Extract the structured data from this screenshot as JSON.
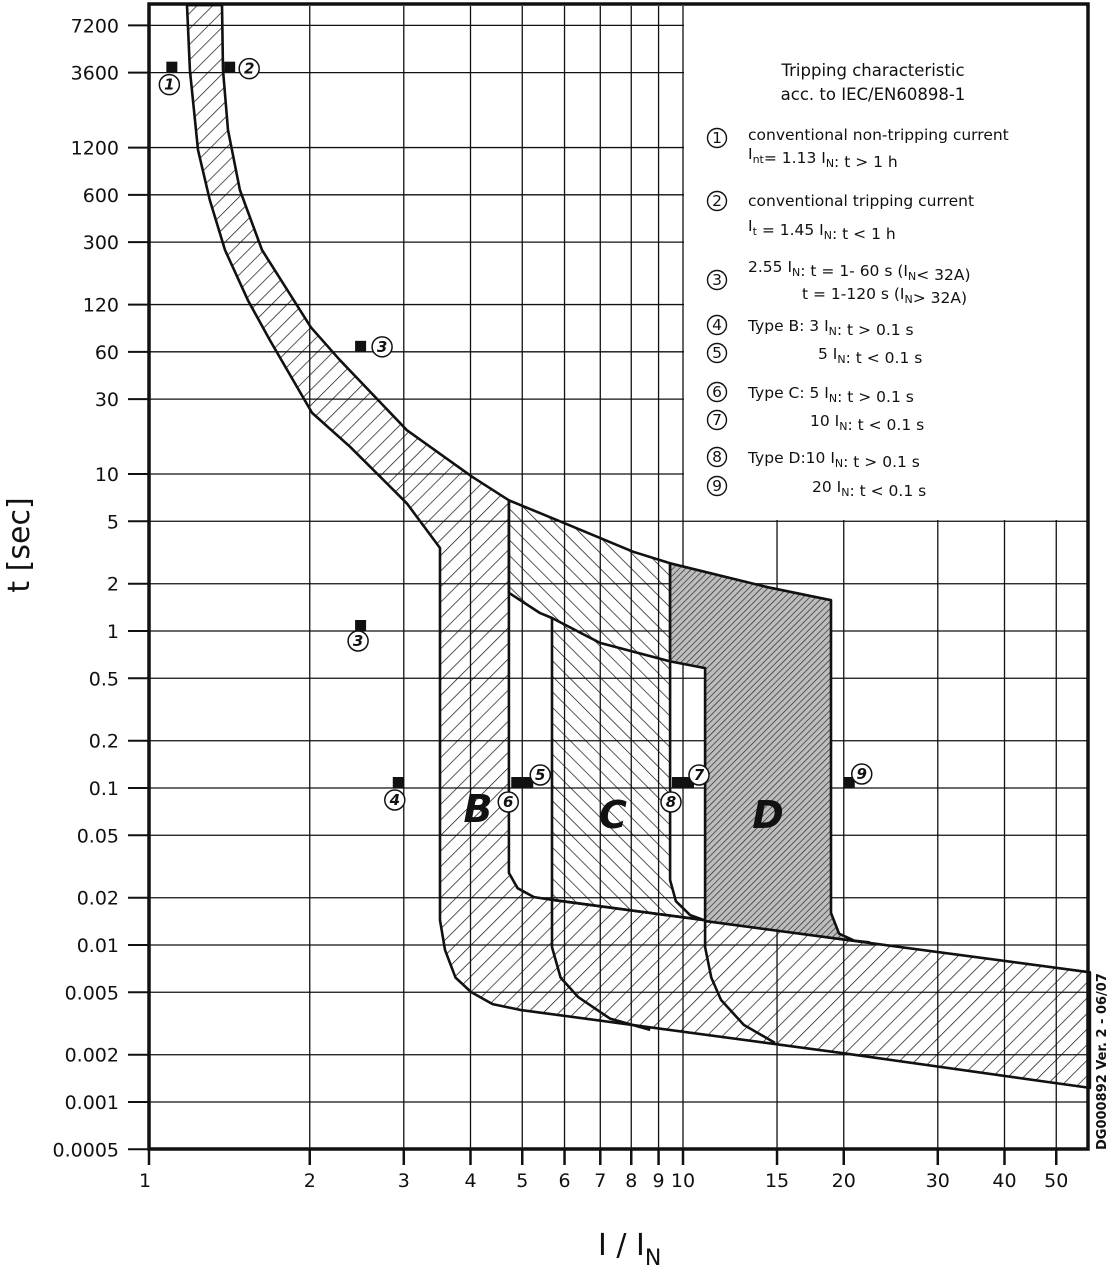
{
  "chart_data": {
    "type": "area",
    "title": [
      "Tripping characteristic",
      "acc. to IEC/EN60898-1"
    ],
    "xlabel": "I / I",
    "xlabel_sub": "N",
    "ylabel": "t [sec]",
    "x_scale": "log",
    "y_scale": "log",
    "xlim": [
      1,
      57.8
    ],
    "ylim": [
      0.0005,
      9700
    ],
    "grid": true,
    "legend_position": "top-right",
    "x_ticks": [
      1,
      2,
      3,
      4,
      5,
      6,
      7,
      8,
      9,
      10,
      15,
      20,
      30,
      40,
      50
    ],
    "x_tick_labels": [
      "1",
      "2",
      "3",
      "4",
      "5",
      "6",
      "7",
      "8",
      "9",
      "10",
      "15",
      "20",
      "30",
      "40",
      "50"
    ],
    "y_ticks": [
      7200,
      3600,
      1200,
      600,
      300,
      120,
      60,
      30,
      10,
      5,
      2,
      1,
      0.5,
      0.2,
      0.1,
      0.05,
      0.02,
      0.01,
      0.005,
      0.002,
      0.001,
      0.0005
    ],
    "y_tick_labels": [
      "7200",
      "3600",
      "1200",
      "600",
      "300",
      "120",
      "60",
      "30",
      "10",
      "5",
      "2",
      "1",
      "0.5",
      "0.2",
      "0.1",
      "0.05",
      "0.02",
      "0.01",
      "0.005",
      "0.002",
      "0.001",
      "0.0005"
    ],
    "regions": [
      {
        "name": "thermal-and-type-B-band",
        "hatch": "forward",
        "points": [
          [
            1.178,
            9700
          ],
          [
            1.193,
            3740
          ],
          [
            1.235,
            1160
          ],
          [
            1.3,
            556
          ],
          [
            1.388,
            267
          ],
          [
            1.532,
            128
          ],
          [
            1.685,
            71
          ],
          [
            2.02,
            24.5
          ],
          [
            2.38,
            14.9
          ],
          [
            3.04,
            6.5
          ],
          [
            3.507,
            3.38
          ],
          [
            3.507,
            0.0144
          ],
          [
            3.584,
            0.0093
          ],
          [
            3.75,
            0.0062
          ],
          [
            4.009,
            0.00502
          ],
          [
            4.4,
            0.0042
          ],
          [
            4.953,
            0.00386
          ],
          [
            19.86,
            0.00205
          ],
          [
            57.8,
            0.00123
          ],
          [
            57.8,
            0.0067
          ],
          [
            20.2,
            0.0108
          ],
          [
            10.95,
            0.0144
          ],
          [
            5.685,
            0.0194
          ],
          [
            5.26,
            0.0202
          ],
          [
            4.9,
            0.023
          ],
          [
            4.72,
            0.0288
          ],
          [
            4.72,
            6.8
          ],
          [
            4.03,
            9.6
          ],
          [
            3.04,
            19
          ],
          [
            2.28,
            53
          ],
          [
            2.01,
            86
          ],
          [
            1.628,
            267
          ],
          [
            1.48,
            644
          ],
          [
            1.406,
            1553
          ],
          [
            1.376,
            3740
          ],
          [
            1.37,
            9700
          ]
        ]
      },
      {
        "name": "type-C-region",
        "hatch": "backward",
        "points": [
          [
            4.72,
            6.8
          ],
          [
            5.96,
            4.9
          ],
          [
            8.06,
            3.2
          ],
          [
            9.46,
            2.7
          ],
          [
            9.46,
            0.0259
          ],
          [
            9.7,
            0.019
          ],
          [
            10.31,
            0.0155
          ],
          [
            10.95,
            0.0144
          ],
          [
            5.685,
            0.0194
          ],
          [
            5.685,
            1.21
          ],
          [
            5.4,
            1.3
          ],
          [
            4.72,
            1.75
          ]
        ]
      },
      {
        "name": "type-D-region",
        "hatch": "dense",
        "points": [
          [
            9.46,
            2.7
          ],
          [
            14.4,
            1.9
          ],
          [
            18.93,
            1.57
          ],
          [
            18.93,
            0.016
          ],
          [
            19.6,
            0.0118
          ],
          [
            21,
            0.0106
          ],
          [
            22.3,
            0.0104
          ],
          [
            20.2,
            0.0108
          ],
          [
            11.0,
            0.0142
          ],
          [
            11.0,
            0.58
          ],
          [
            9.46,
            0.64
          ]
        ]
      }
    ],
    "curves": [
      {
        "name": "thermal-lower-curve-continuation",
        "points": [
          [
            5.685,
            1.21
          ],
          [
            6.99,
            0.84
          ],
          [
            9.46,
            0.64
          ]
        ]
      },
      {
        "name": "type-C-instantaneous-curve",
        "points": [
          [
            5.685,
            0.0194
          ],
          [
            5.685,
            0.0097
          ],
          [
            5.9,
            0.0062
          ],
          [
            6.36,
            0.00467
          ],
          [
            7.3,
            0.0034
          ],
          [
            8.68,
            0.00288
          ]
        ]
      },
      {
        "name": "type-D-instantaneous-curve",
        "points": [
          [
            11.0,
            0.0142
          ],
          [
            11.0,
            0.0097
          ],
          [
            11.3,
            0.0062
          ],
          [
            11.78,
            0.00447
          ],
          [
            13,
            0.0031
          ],
          [
            14.87,
            0.00238
          ]
        ]
      }
    ],
    "markers": [
      {
        "label": "1",
        "I": 1.13,
        "t": 3600
      },
      {
        "label": "2",
        "I": 1.45,
        "t": 3600
      },
      {
        "label": "3",
        "I": 2.55,
        "t": 60
      },
      {
        "label": "3",
        "I": 2.55,
        "t": 1
      },
      {
        "label": "4",
        "I": 3,
        "t": 0.1
      },
      {
        "label": "5",
        "I": 5,
        "t": 0.1
      },
      {
        "label": "6",
        "I": 5,
        "t": 0.1
      },
      {
        "label": "7",
        "I": 10,
        "t": 0.1
      },
      {
        "label": "8",
        "I": 10,
        "t": 0.1
      },
      {
        "label": "9",
        "I": 20,
        "t": 0.1
      }
    ],
    "zone_labels": [
      "B",
      "C",
      "D"
    ],
    "legend": [
      {
        "num": "1",
        "lines": [
          [
            {
              "t": "conventional non-tripping current"
            }
          ],
          [
            {
              "t": "I"
            },
            {
              "t": "nt",
              "sub": true
            },
            {
              "t": "= 1.13 I"
            },
            {
              "t": "N",
              "sub": true
            },
            {
              "t": ": t > 1 h"
            }
          ]
        ]
      },
      {
        "num": "2",
        "lines": [
          [
            {
              "t": "conventional tripping current"
            }
          ],
          [
            {
              "t": "I"
            },
            {
              "t": "t",
              "sub": true
            },
            {
              "t": " = 1.45 I"
            },
            {
              "t": "N",
              "sub": true
            },
            {
              "t": ": t < 1 h"
            }
          ]
        ]
      },
      {
        "num": "3",
        "lines": [
          [
            {
              "t": "2.55 I"
            },
            {
              "t": "N",
              "sub": true
            },
            {
              "t": ": t = 1- 60 s (I"
            },
            {
              "t": "N",
              "sub": true
            },
            {
              "t": "< 32A)"
            }
          ],
          [
            {
              "t": "t = 1-120 s (I"
            },
            {
              "t": "N",
              "sub": true
            },
            {
              "t": "> 32A)"
            }
          ]
        ]
      },
      {
        "num": "4",
        "lines": [
          [
            {
              "t": "Type B: 3 I"
            },
            {
              "t": "N",
              "sub": true
            },
            {
              "t": ": t > 0.1 s"
            }
          ]
        ]
      },
      {
        "num": "5",
        "lines": [
          [
            {
              "t": "5 I"
            },
            {
              "t": "N",
              "sub": true
            },
            {
              "t": ": t < 0.1 s"
            }
          ]
        ]
      },
      {
        "num": "6",
        "lines": [
          [
            {
              "t": "Type C: 5 I"
            },
            {
              "t": "N",
              "sub": true
            },
            {
              "t": ": t > 0.1 s"
            }
          ]
        ]
      },
      {
        "num": "7",
        "lines": [
          [
            {
              "t": "10 I"
            },
            {
              "t": "N",
              "sub": true
            },
            {
              "t": ": t < 0.1 s"
            }
          ]
        ]
      },
      {
        "num": "8",
        "lines": [
          [
            {
              "t": "Type D:10 I"
            },
            {
              "t": "N",
              "sub": true
            },
            {
              "t": ": t > 0.1 s"
            }
          ]
        ]
      },
      {
        "num": "9",
        "lines": [
          [
            {
              "t": "20 I"
            },
            {
              "t": "N",
              "sub": true
            },
            {
              "t": ": t < 0.1 s"
            }
          ]
        ]
      }
    ],
    "footnote": "DG000892 Ver. 2 - 06/07",
    "colors": {
      "ink": "#111111",
      "dense_fill": "#9a9a9a",
      "background": "#ffffff"
    }
  }
}
